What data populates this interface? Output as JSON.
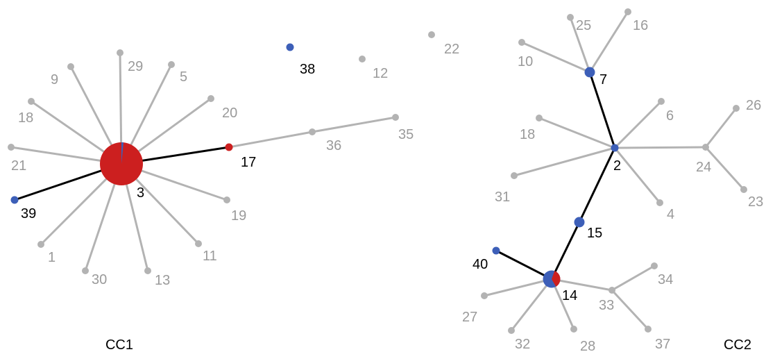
{
  "colors": {
    "grey": "#b3b3b3",
    "black": "#000000",
    "red": "#cc1f1f",
    "blue": "#3d5fb8",
    "label_grey": "#9a9a9a",
    "label_black": "#000000"
  },
  "components": [
    {
      "label": "CC1",
      "nodes": [
        {
          "id": "3",
          "label": "3",
          "color": "red",
          "size": "large",
          "style": "red-with-blue-sliver",
          "label_color": "black"
        },
        {
          "id": "17",
          "label": "17",
          "color": "red",
          "size": "small",
          "label_color": "black"
        },
        {
          "id": "36",
          "label": "36",
          "color": "grey",
          "size": "tiny",
          "label_color": "grey"
        },
        {
          "id": "35",
          "label": "35",
          "color": "grey",
          "size": "tiny",
          "label_color": "grey"
        },
        {
          "id": "39",
          "label": "39",
          "color": "blue",
          "size": "small",
          "label_color": "black"
        },
        {
          "id": "29",
          "label": "29",
          "color": "grey",
          "size": "tiny",
          "label_color": "grey"
        },
        {
          "id": "5",
          "label": "5",
          "color": "grey",
          "size": "tiny",
          "label_color": "grey"
        },
        {
          "id": "9",
          "label": "9",
          "color": "grey",
          "size": "tiny",
          "label_color": "grey"
        },
        {
          "id": "20",
          "label": "20",
          "color": "grey",
          "size": "tiny",
          "label_color": "grey"
        },
        {
          "id": "18",
          "label": "18",
          "color": "grey",
          "size": "tiny",
          "label_color": "grey"
        },
        {
          "id": "21",
          "label": "21",
          "color": "grey",
          "size": "tiny",
          "label_color": "grey"
        },
        {
          "id": "19",
          "label": "19",
          "color": "grey",
          "size": "tiny",
          "label_color": "grey"
        },
        {
          "id": "11",
          "label": "11",
          "color": "grey",
          "size": "tiny",
          "label_color": "grey"
        },
        {
          "id": "13",
          "label": "13",
          "color": "grey",
          "size": "tiny",
          "label_color": "grey"
        },
        {
          "id": "30",
          "label": "30",
          "color": "grey",
          "size": "tiny",
          "label_color": "grey"
        },
        {
          "id": "1",
          "label": "1",
          "color": "grey",
          "size": "tiny",
          "label_color": "grey"
        }
      ],
      "edges": [
        [
          "3",
          "17",
          "black"
        ],
        [
          "3",
          "39",
          "black"
        ],
        [
          "17",
          "36",
          "grey"
        ],
        [
          "36",
          "35",
          "grey"
        ],
        [
          "3",
          "29",
          "grey"
        ],
        [
          "3",
          "5",
          "grey"
        ],
        [
          "3",
          "9",
          "grey"
        ],
        [
          "3",
          "20",
          "grey"
        ],
        [
          "3",
          "18",
          "grey"
        ],
        [
          "3",
          "21",
          "grey"
        ],
        [
          "3",
          "19",
          "grey"
        ],
        [
          "3",
          "11",
          "grey"
        ],
        [
          "3",
          "13",
          "grey"
        ],
        [
          "3",
          "30",
          "grey"
        ],
        [
          "3",
          "1",
          "grey"
        ]
      ]
    },
    {
      "label": "",
      "nodes": [
        {
          "id": "38",
          "label": "38",
          "color": "blue",
          "size": "small",
          "label_color": "black"
        },
        {
          "id": "12",
          "label": "12",
          "color": "grey",
          "size": "tiny",
          "label_color": "grey"
        },
        {
          "id": "22",
          "label": "22",
          "color": "grey",
          "size": "tiny",
          "label_color": "grey"
        }
      ],
      "edges": []
    },
    {
      "label": "CC2",
      "nodes": [
        {
          "id": "7",
          "label": "7",
          "color": "blue",
          "size": "medium",
          "label_color": "black"
        },
        {
          "id": "25",
          "label": "25",
          "color": "grey",
          "size": "tiny",
          "label_color": "grey"
        },
        {
          "id": "16",
          "label": "16",
          "color": "grey",
          "size": "tiny",
          "label_color": "grey"
        },
        {
          "id": "10",
          "label": "10",
          "color": "grey",
          "size": "tiny",
          "label_color": "grey"
        },
        {
          "id": "2",
          "label": "2",
          "color": "blue",
          "size": "small",
          "label_color": "black"
        },
        {
          "id": "6",
          "label": "6",
          "color": "grey",
          "size": "tiny",
          "label_color": "grey"
        },
        {
          "id": "18b",
          "label": "18",
          "color": "grey",
          "size": "tiny",
          "label_color": "grey"
        },
        {
          "id": "31",
          "label": "31",
          "color": "grey",
          "size": "tiny",
          "label_color": "grey"
        },
        {
          "id": "4",
          "label": "4",
          "color": "grey",
          "size": "tiny",
          "label_color": "grey"
        },
        {
          "id": "24",
          "label": "24",
          "color": "grey",
          "size": "tiny",
          "label_color": "grey"
        },
        {
          "id": "26",
          "label": "26",
          "color": "grey",
          "size": "tiny",
          "label_color": "grey"
        },
        {
          "id": "23",
          "label": "23",
          "color": "grey",
          "size": "tiny",
          "label_color": "grey"
        },
        {
          "id": "15",
          "label": "15",
          "color": "blue",
          "size": "medium",
          "label_color": "black"
        },
        {
          "id": "14",
          "label": "14",
          "color": "blue",
          "size": "large-2",
          "style": "blue-with-red-quarter",
          "label_color": "black"
        },
        {
          "id": "40",
          "label": "40",
          "color": "blue",
          "size": "small",
          "label_color": "black"
        },
        {
          "id": "27",
          "label": "27",
          "color": "grey",
          "size": "tiny",
          "label_color": "grey"
        },
        {
          "id": "32",
          "label": "32",
          "color": "grey",
          "size": "tiny",
          "label_color": "grey"
        },
        {
          "id": "28",
          "label": "28",
          "color": "grey",
          "size": "tiny",
          "label_color": "grey"
        },
        {
          "id": "33",
          "label": "33",
          "color": "grey",
          "size": "tiny",
          "label_color": "grey"
        },
        {
          "id": "34",
          "label": "34",
          "color": "grey",
          "size": "tiny",
          "label_color": "grey"
        },
        {
          "id": "37",
          "label": "37",
          "color": "grey",
          "size": "tiny",
          "label_color": "grey"
        }
      ],
      "edges": [
        [
          "7",
          "25",
          "grey"
        ],
        [
          "7",
          "16",
          "grey"
        ],
        [
          "7",
          "10",
          "grey"
        ],
        [
          "7",
          "2",
          "black"
        ],
        [
          "2",
          "6",
          "grey"
        ],
        [
          "2",
          "18b",
          "grey"
        ],
        [
          "2",
          "31",
          "grey"
        ],
        [
          "2",
          "4",
          "grey"
        ],
        [
          "2",
          "24",
          "grey"
        ],
        [
          "24",
          "26",
          "grey"
        ],
        [
          "24",
          "23",
          "grey"
        ],
        [
          "2",
          "15",
          "black"
        ],
        [
          "15",
          "14",
          "black"
        ],
        [
          "14",
          "40",
          "black"
        ],
        [
          "14",
          "27",
          "grey"
        ],
        [
          "14",
          "32",
          "grey"
        ],
        [
          "14",
          "28",
          "grey"
        ],
        [
          "14",
          "33",
          "grey"
        ],
        [
          "33",
          "34",
          "grey"
        ],
        [
          "33",
          "37",
          "grey"
        ]
      ]
    }
  ]
}
